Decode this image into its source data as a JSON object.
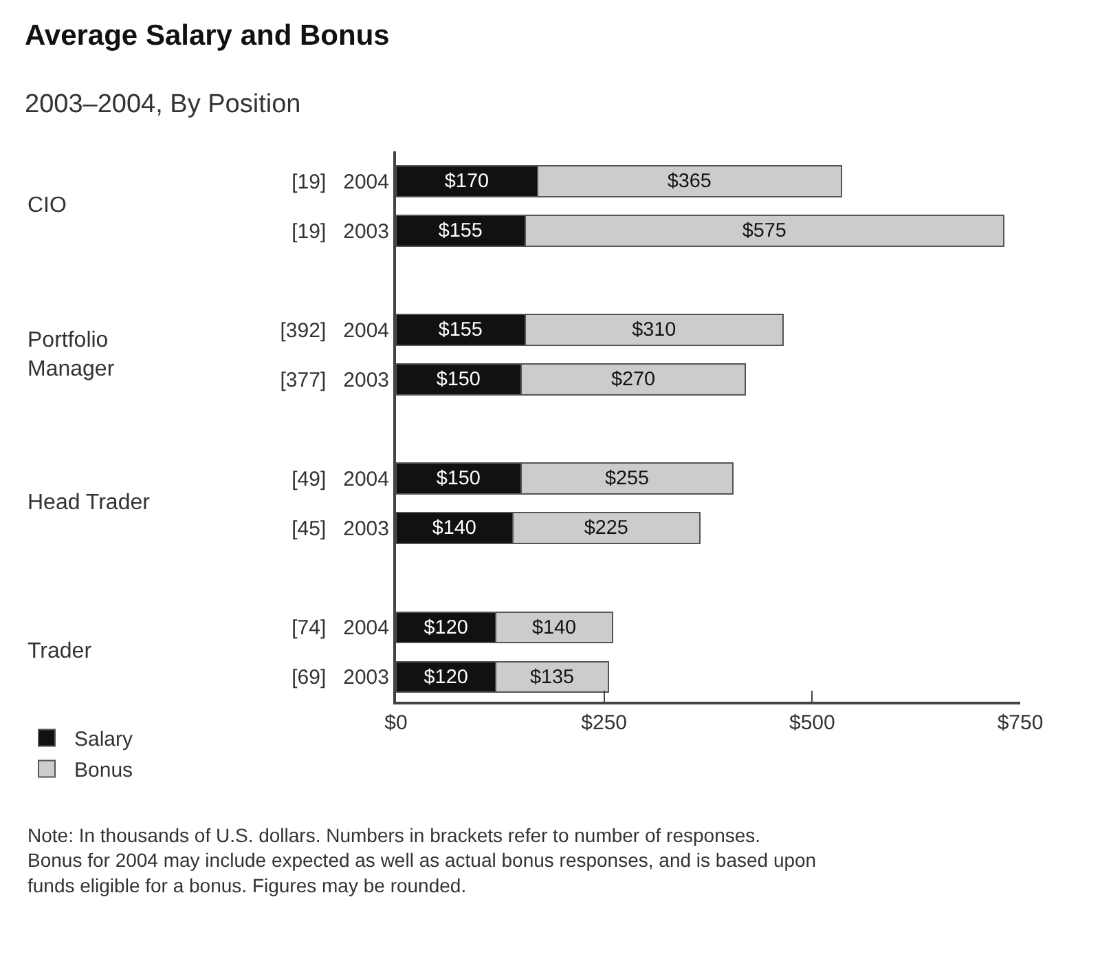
{
  "chart_data": {
    "type": "bar",
    "orientation": "horizontal",
    "stacked": true,
    "title": "Average Salary and Bonus",
    "subtitle": "2003–2004, By Position",
    "categories": [
      "[19]   2004",
      "[19]   2003",
      null,
      "[392]   2004",
      "[377]   2003",
      null,
      "[49]   2004",
      "[45]   2003",
      null,
      "[74]   2004",
      "[69]   2003"
    ],
    "series": [
      {
        "name": "Salary",
        "color": "#111111",
        "values": [
          170,
          155,
          null,
          155,
          150,
          null,
          150,
          140,
          null,
          120,
          120
        ],
        "value_labels": [
          "$170",
          "$155",
          null,
          "$155",
          "$150",
          null,
          "$150",
          "$140",
          null,
          "$120",
          "$120"
        ]
      },
      {
        "name": "Bonus",
        "color": "#cccccc",
        "values": [
          365,
          575,
          null,
          310,
          270,
          null,
          255,
          225,
          null,
          140,
          135
        ],
        "value_labels": [
          "$365",
          "$575",
          null,
          "$310",
          "$270",
          null,
          "$255",
          "$225",
          null,
          "$140",
          "$135"
        ]
      }
    ],
    "xlim": [
      0,
      750
    ],
    "xticks": [
      {
        "value": 0,
        "label": "$0"
      },
      {
        "value": 250,
        "label": "$250"
      },
      {
        "value": 500,
        "label": "$500"
      },
      {
        "value": 750,
        "label": "$750"
      }
    ],
    "legend": "bottom left",
    "annotations": [
      "CIO",
      "Portfolio Manager",
      "Head Trader",
      "Trader",
      "Note: In thousands of U.S. dollars. Numbers in brackets refer to number of responses. Bonus for 2004 may include expected as well as actual bonus responses, and is based upon funds eligible for a bonus. Figures may be rounded."
    ]
  }
}
